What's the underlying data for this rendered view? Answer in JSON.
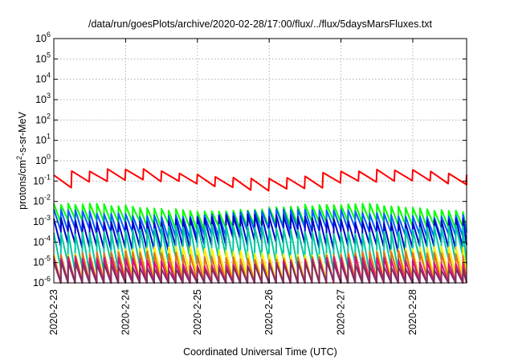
{
  "chart_data": {
    "type": "line",
    "title": "/data/run/goesPlots/archive/2020-02-28/17:00/flux/../flux/5daysMarsFluxes.txt",
    "xlabel": "Coordinated Universal Time (UTC)",
    "ylabel": {
      "pre": "protons/cm",
      "sup": "2",
      "post": "-s-sr-MeV"
    },
    "y_scale": "log",
    "ylim_exponents": [
      -6,
      6
    ],
    "y_ticks": [
      {
        "base": "10",
        "exp": "-6"
      },
      {
        "base": "10",
        "exp": "-5"
      },
      {
        "base": "10",
        "exp": "-4"
      },
      {
        "base": "10",
        "exp": "-3"
      },
      {
        "base": "10",
        "exp": "-2"
      },
      {
        "base": "10",
        "exp": "-1"
      },
      {
        "base": "10",
        "exp": "0"
      },
      {
        "base": "10",
        "exp": "1"
      },
      {
        "base": "10",
        "exp": "2"
      },
      {
        "base": "10",
        "exp": "3"
      },
      {
        "base": "10",
        "exp": "4"
      },
      {
        "base": "10",
        "exp": "5"
      },
      {
        "base": "10",
        "exp": "6"
      }
    ],
    "x_ticks": [
      "2020-2-23",
      "2020-2-24",
      "2020-2-25",
      "2020-2-26",
      "2020-2-27",
      "2020-2-28"
    ],
    "x_range_days": [
      0,
      5.75
    ],
    "grid": true,
    "legend": "none",
    "series": [
      {
        "color": "#ff0000",
        "peak_exp": -0.6,
        "amp": 0.55,
        "period": 0.25,
        "drift": 0.25
      },
      {
        "color": "#00ff00",
        "peak_exp": -2.25,
        "amp": 0.85,
        "period": 0.1,
        "drift": 0.18
      },
      {
        "color": "#0060ff",
        "peak_exp": -2.5,
        "amp": 1.0,
        "period": 0.1,
        "drift": 0.18
      },
      {
        "color": "#0000cc",
        "peak_exp": -2.8,
        "amp": 1.3,
        "period": 0.1,
        "drift": 0.18
      },
      {
        "color": "#00c8a0",
        "peak_exp": -3.3,
        "amp": 1.7,
        "period": 0.1,
        "drift": 0.2
      },
      {
        "color": "#ffee00",
        "peak_exp": -4.4,
        "amp": 1.4,
        "period": 0.1,
        "drift": 0.2
      },
      {
        "color": "#e07020",
        "peak_exp": -4.6,
        "amp": 1.4,
        "period": 0.1,
        "drift": 0.2
      },
      {
        "color": "#d81080",
        "peak_exp": -4.9,
        "amp": 1.3,
        "period": 0.1,
        "drift": 0.2
      },
      {
        "color": "#803060",
        "peak_exp": -5.1,
        "amp": 1.1,
        "period": 0.1,
        "drift": 0.2
      }
    ]
  }
}
